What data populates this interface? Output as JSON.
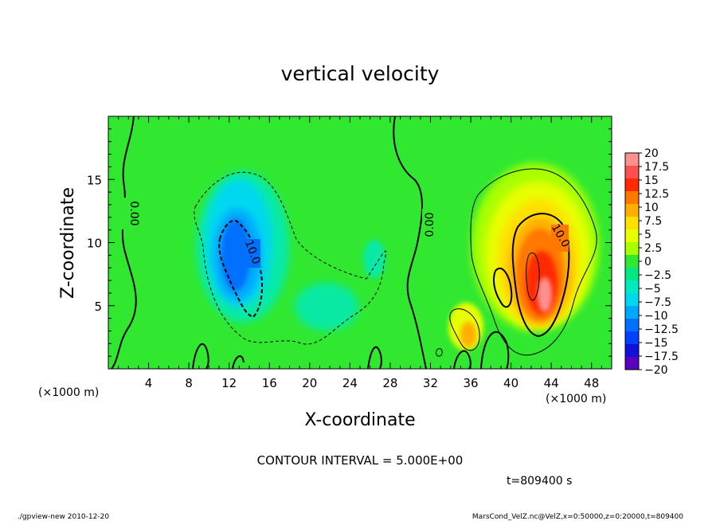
{
  "chart_data": {
    "type": "heatmap",
    "title": "vertical velocity",
    "xlabel": "X-coordinate",
    "ylabel": "Z-coordinate",
    "x_unit_left": "(×1000 m)",
    "x_unit_right": "(×1000 m)",
    "xlim": [
      0,
      50
    ],
    "ylim": [
      0,
      20
    ],
    "x_ticks": [
      4,
      8,
      12,
      16,
      20,
      24,
      28,
      32,
      36,
      40,
      44,
      48
    ],
    "y_ticks": [
      5,
      10,
      15
    ],
    "colorbar": {
      "levels": [
        -20,
        -17.5,
        -15,
        -12.5,
        -10,
        -7.5,
        -5,
        -2.5,
        0,
        2.5,
        5,
        7.5,
        10,
        12.5,
        15,
        17.5,
        20
      ],
      "labels": [
        "20",
        "17.5",
        "15",
        "12.5",
        "10",
        "7.5",
        "5",
        "2.5",
        "0",
        "−2.5",
        "−5",
        "−7.5",
        "−10",
        "−12.5",
        "−15",
        "−17.5",
        "−20"
      ],
      "colors": [
        "#ff9090",
        "#ff5050",
        "#ff2a00",
        "#ff7800",
        "#ffaf00",
        "#ffe000",
        "#e8ff00",
        "#a8ff00",
        "#30e830",
        "#00e880",
        "#00eac0",
        "#00d8f0",
        "#00a8ff",
        "#0070ff",
        "#0040ff",
        "#1010d8",
        "#5a00c0"
      ]
    },
    "features": [
      {
        "kind": "downdraft",
        "x": 13,
        "z": 9,
        "peak": -12
      },
      {
        "kind": "updraft",
        "x": 43,
        "z": 8,
        "peak": 16
      }
    ],
    "contour_labels": [
      "0.00",
      "10.0",
      "0.00",
      "10.0"
    ],
    "contour_interval_text": "CONTOUR INTERVAL = 5.000E+00",
    "time_text": "t=809400  s"
  },
  "footer": {
    "left": "./gpview-new   2010-12-20",
    "right": "MarsCond_VelZ.nc@VelZ,x=0:50000,z=0:20000,t=809400"
  },
  "colors": {
    "background_field": "#30e830"
  }
}
